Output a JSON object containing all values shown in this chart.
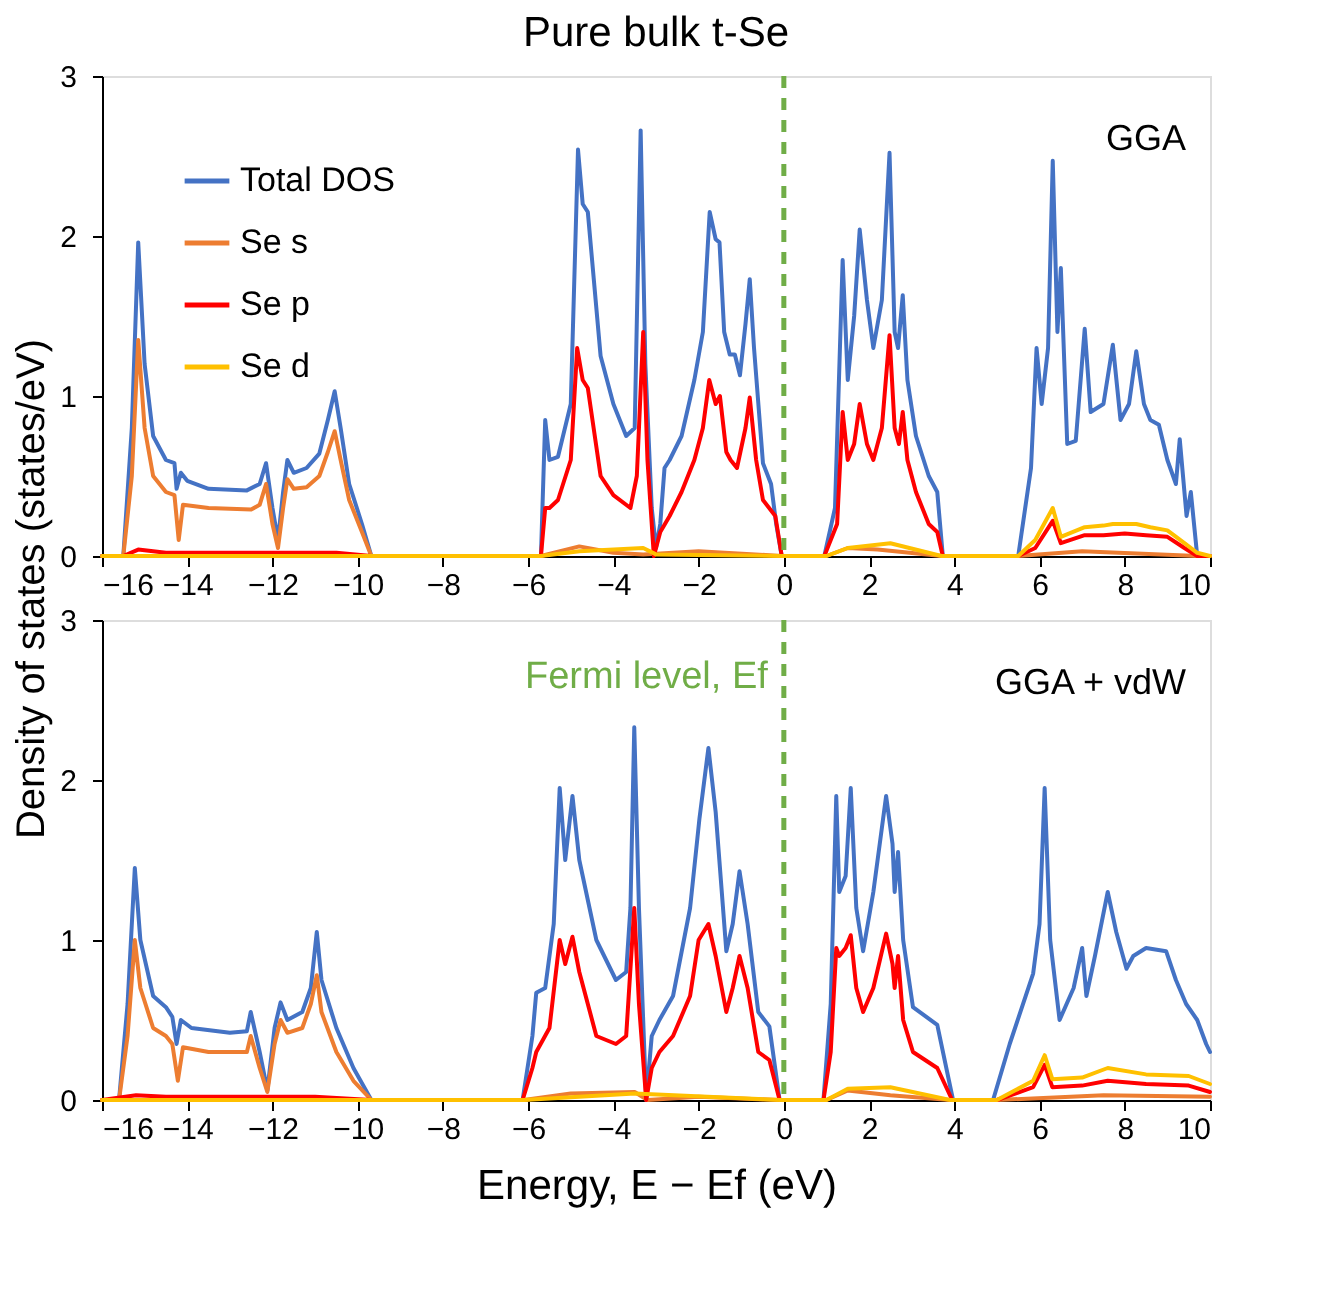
{
  "chart_data": [
    {
      "type": "line",
      "title": "Pure bulk t-Se",
      "ylabel": "Density of states (states/eV)",
      "xlim": [
        -16,
        10
      ],
      "ylim": [
        0,
        3
      ],
      "xticks": [
        -16,
        -14,
        -12,
        -10,
        -8,
        -6,
        -4,
        -2,
        0,
        2,
        4,
        6,
        8,
        10
      ],
      "yticks": [
        0,
        1,
        2,
        3
      ],
      "grid": false,
      "legend": "top left",
      "annotations": [
        "GGA"
      ],
      "ref_lines": [
        {
          "axis": "x",
          "value": 0,
          "color": "#70ad47",
          "line_style": "dashed"
        }
      ],
      "series": [
        {
          "name": "Total DOS",
          "color": "#4472c4",
          "x": [
            -16,
            -15.5,
            -15.3,
            -15.15,
            -15.0,
            -14.8,
            -14.5,
            -14.3,
            -14.25,
            -14.15,
            -14.0,
            -13.5,
            -12.6,
            -12.3,
            -12.15,
            -12.0,
            -11.87,
            -11.75,
            -11.65,
            -11.5,
            -11.2,
            -10.9,
            -10.7,
            -10.54,
            -10.4,
            -10.2,
            -9.9,
            -9.68,
            -5.7,
            -5.6,
            -5.5,
            -5.3,
            -5.0,
            -4.83,
            -4.72,
            -4.6,
            -4.3,
            -4.0,
            -3.7,
            -3.5,
            -3.36,
            -3.25,
            -3.1,
            -3.0,
            -2.9,
            -2.8,
            -2.68,
            -2.4,
            -2.1,
            -1.9,
            -1.74,
            -1.6,
            -1.51,
            -1.4,
            -1.27,
            -1.15,
            -1.03,
            -0.9,
            -0.8,
            -0.7,
            -0.49,
            -0.3,
            -0.18,
            -0.05,
            0.95,
            1.2,
            1.38,
            1.5,
            1.65,
            1.78,
            1.95,
            2.1,
            2.3,
            2.48,
            2.6,
            2.68,
            2.79,
            2.9,
            3.1,
            3.4,
            3.6,
            3.73,
            5.5,
            5.8,
            5.93,
            6.05,
            6.2,
            6.31,
            6.42,
            6.5,
            6.65,
            6.85,
            7.06,
            7.2,
            7.5,
            7.72,
            7.9,
            8.1,
            8.27,
            8.45,
            8.6,
            8.8,
            9.0,
            9.2,
            9.29,
            9.45,
            9.55,
            9.7,
            10
          ],
          "values": [
            0,
            0,
            0.8,
            1.96,
            1.2,
            0.75,
            0.6,
            0.58,
            0.42,
            0.52,
            0.47,
            0.42,
            0.41,
            0.45,
            0.58,
            0.3,
            0.1,
            0.4,
            0.6,
            0.52,
            0.55,
            0.64,
            0.85,
            1.03,
            0.8,
            0.45,
            0.2,
            0,
            0,
            0.85,
            0.6,
            0.62,
            0.95,
            2.54,
            2.2,
            2.15,
            1.25,
            0.95,
            0.75,
            0.8,
            2.66,
            1.2,
            0.3,
            0.05,
            0.2,
            0.55,
            0.6,
            0.75,
            1.1,
            1.4,
            2.15,
            1.98,
            1.96,
            1.4,
            1.26,
            1.26,
            1.13,
            1.45,
            1.73,
            1.3,
            0.58,
            0.45,
            0.2,
            0,
            0,
            0.3,
            1.85,
            1.1,
            1.5,
            2.04,
            1.6,
            1.3,
            1.6,
            2.52,
            1.4,
            1.3,
            1.63,
            1.1,
            0.75,
            0.5,
            0.4,
            0,
            0,
            0.55,
            1.3,
            0.95,
            1.3,
            2.47,
            1.4,
            1.8,
            0.7,
            0.72,
            1.42,
            0.9,
            0.95,
            1.32,
            0.85,
            0.95,
            1.28,
            0.95,
            0.85,
            0.82,
            0.6,
            0.45,
            0.73,
            0.25,
            0.4,
            0,
            0
          ]
        },
        {
          "name": "Se s",
          "color": "#ed7d31",
          "x": [
            -16,
            -15.5,
            -15.3,
            -15.15,
            -15.0,
            -14.8,
            -14.5,
            -14.3,
            -14.2,
            -14.1,
            -13.5,
            -12.5,
            -12.3,
            -12.15,
            -12.0,
            -11.87,
            -11.75,
            -11.65,
            -11.5,
            -11.2,
            -10.9,
            -10.7,
            -10.54,
            -10.4,
            -10.2,
            -9.9,
            -9.68,
            -5.7,
            -4.8,
            -4.0,
            -3.3,
            -2.0,
            -0.05,
            1.0,
            1.5,
            2.2,
            3.7,
            5.5,
            7,
            9.7,
            10
          ],
          "values": [
            0,
            0,
            0.5,
            1.35,
            0.8,
            0.5,
            0.4,
            0.38,
            0.1,
            0.32,
            0.3,
            0.29,
            0.32,
            0.45,
            0.2,
            0.05,
            0.3,
            0.48,
            0.42,
            0.43,
            0.5,
            0.65,
            0.78,
            0.6,
            0.35,
            0.15,
            0,
            0,
            0.06,
            0.02,
            0.01,
            0.03,
            0,
            0,
            0.05,
            0.04,
            0,
            0,
            0.03,
            0,
            0
          ]
        },
        {
          "name": "Se p",
          "color": "#ff0000",
          "x": [
            -16,
            -15.5,
            -15.15,
            -14.5,
            -10.5,
            -9.68,
            -5.7,
            -5.6,
            -5.5,
            -5.3,
            -5.0,
            -4.85,
            -4.72,
            -4.6,
            -4.3,
            -4.0,
            -3.6,
            -3.45,
            -3.3,
            -3.2,
            -3.05,
            -2.9,
            -2.68,
            -2.4,
            -2.1,
            -1.9,
            -1.75,
            -1.6,
            -1.5,
            -1.35,
            -1.25,
            -1.1,
            -0.9,
            -0.8,
            -0.65,
            -0.49,
            -0.2,
            -0.05,
            0.95,
            1.25,
            1.38,
            1.5,
            1.65,
            1.78,
            1.95,
            2.1,
            2.3,
            2.48,
            2.6,
            2.7,
            2.79,
            2.9,
            3.1,
            3.4,
            3.6,
            3.73,
            5.5,
            5.9,
            6.31,
            6.5,
            7.06,
            7.5,
            8.0,
            8.5,
            9.0,
            9.4,
            9.7,
            10
          ],
          "values": [
            0,
            0,
            0.04,
            0.02,
            0.02,
            0,
            0,
            0.3,
            0.3,
            0.35,
            0.6,
            1.3,
            1.1,
            1.05,
            0.5,
            0.38,
            0.3,
            0.5,
            1.4,
            0.6,
            0,
            0.15,
            0.25,
            0.4,
            0.6,
            0.8,
            1.1,
            0.95,
            1.0,
            0.65,
            0.6,
            0.55,
            0.8,
            0.99,
            0.6,
            0.35,
            0.25,
            0,
            0,
            0.2,
            0.9,
            0.6,
            0.7,
            0.95,
            0.7,
            0.6,
            0.8,
            1.38,
            0.8,
            0.7,
            0.9,
            0.6,
            0.4,
            0.2,
            0.15,
            0,
            0,
            0.05,
            0.22,
            0.08,
            0.13,
            0.13,
            0.14,
            0.13,
            0.12,
            0.05,
            0,
            0
          ]
        },
        {
          "name": "Se d",
          "color": "#ffc000",
          "x": [
            -16,
            -5.7,
            -4.8,
            -3.3,
            -3.0,
            -0.05,
            1.0,
            1.5,
            2.5,
            3.7,
            5.5,
            5.9,
            6.31,
            6.5,
            7.06,
            7.5,
            7.72,
            8.27,
            8.6,
            9.0,
            9.4,
            9.7,
            10
          ],
          "values": [
            0,
            0,
            0.03,
            0.05,
            0.01,
            0,
            0,
            0.05,
            0.08,
            0,
            0,
            0.1,
            0.3,
            0.12,
            0.18,
            0.19,
            0.2,
            0.2,
            0.18,
            0.16,
            0.08,
            0.02,
            0
          ]
        }
      ]
    },
    {
      "type": "line",
      "xlabel": "Energy, E − Ef (eV)",
      "xlim": [
        -16,
        10
      ],
      "ylim": [
        0,
        3
      ],
      "xticks": [
        -16,
        -14,
        -12,
        -10,
        -8,
        -6,
        -4,
        -2,
        0,
        2,
        4,
        6,
        8,
        10
      ],
      "yticks": [
        0,
        1,
        2,
        3
      ],
      "grid": false,
      "annotations": [
        "GGA + vdW"
      ],
      "ref_lines": [
        {
          "axis": "x",
          "value": 0,
          "label": "Fermi level, Ef",
          "color": "#70ad47",
          "line_style": "dashed"
        }
      ],
      "series": [
        {
          "color": "#4472c4",
          "x": [
            -16,
            -15.6,
            -15.4,
            -15.23,
            -15.1,
            -14.8,
            -14.5,
            -14.35,
            -14.25,
            -14.15,
            -13.9,
            -13,
            -12.6,
            -12.51,
            -12.3,
            -12.12,
            -11.95,
            -11.81,
            -11.65,
            -11.3,
            -11.1,
            -10.96,
            -10.85,
            -10.5,
            -10.1,
            -9.68,
            -6.13,
            -5.9,
            -5.81,
            -5.6,
            -5.4,
            -5.26,
            -5.13,
            -4.96,
            -4.8,
            -4.4,
            -3.94,
            -3.7,
            -3.6,
            -3.51,
            -3.4,
            -3.23,
            -3.1,
            -2.92,
            -2.6,
            -2.2,
            -1.98,
            -1.77,
            -1.6,
            -1.35,
            -1.2,
            -1.04,
            -0.85,
            -0.6,
            -0.34,
            -0.1,
            0.93,
            1.1,
            1.23,
            1.3,
            1.45,
            1.57,
            1.7,
            1.86,
            2.1,
            2.4,
            2.55,
            2.6,
            2.68,
            2.8,
            3.03,
            3.6,
            3.97,
            4.91,
            5.3,
            5.85,
            6.0,
            6.12,
            6.25,
            6.47,
            6.8,
            7.0,
            7.1,
            7.3,
            7.6,
            7.8,
            8.04,
            8.2,
            8.5,
            8.97,
            9.2,
            9.44,
            9.7,
            9.91,
            10
          ],
          "values": [
            0,
            0,
            0.6,
            1.45,
            1.0,
            0.65,
            0.58,
            0.52,
            0.35,
            0.5,
            0.45,
            0.42,
            0.43,
            0.55,
            0.3,
            0.06,
            0.45,
            0.61,
            0.5,
            0.55,
            0.7,
            1.05,
            0.75,
            0.45,
            0.2,
            0,
            0,
            0.4,
            0.67,
            0.7,
            1.1,
            1.95,
            1.5,
            1.9,
            1.5,
            1.0,
            0.75,
            0.8,
            1.2,
            2.33,
            1.2,
            0,
            0.4,
            0.5,
            0.65,
            1.2,
            1.76,
            2.2,
            1.8,
            0.93,
            1.1,
            1.43,
            1.1,
            0.55,
            0.46,
            0,
            0,
            0.6,
            1.9,
            1.3,
            1.4,
            1.95,
            1.2,
            0.93,
            1.3,
            1.9,
            1.6,
            1.3,
            1.55,
            1.0,
            0.58,
            0.47,
            0,
            0,
            0.35,
            0.79,
            1.1,
            1.95,
            1.0,
            0.5,
            0.7,
            0.95,
            0.65,
            0.9,
            1.3,
            1.05,
            0.82,
            0.9,
            0.95,
            0.93,
            0.75,
            0.6,
            0.5,
            0.35,
            0.3
          ]
        },
        {
          "color": "#ed7d31",
          "x": [
            -16,
            -15.6,
            -15.4,
            -15.23,
            -15.1,
            -14.8,
            -14.5,
            -14.35,
            -14.22,
            -14.1,
            -13.5,
            -12.6,
            -12.51,
            -12.3,
            -12.12,
            -11.95,
            -11.81,
            -11.65,
            -11.3,
            -11.1,
            -10.96,
            -10.85,
            -10.5,
            -10.1,
            -9.68,
            -6.1,
            -5.0,
            -3.5,
            -3.2,
            -2.0,
            -0.1,
            1.0,
            1.5,
            2.5,
            3.9,
            5.0,
            7.5,
            10
          ],
          "values": [
            0,
            0,
            0.4,
            1.0,
            0.7,
            0.45,
            0.4,
            0.35,
            0.12,
            0.33,
            0.3,
            0.3,
            0.4,
            0.2,
            0.05,
            0.35,
            0.5,
            0.42,
            0.45,
            0.6,
            0.78,
            0.55,
            0.3,
            0.12,
            0,
            0,
            0.04,
            0.05,
            0,
            0.02,
            0,
            0,
            0.06,
            0.03,
            0,
            0,
            0.03,
            0.02
          ]
        },
        {
          "color": "#ff0000",
          "x": [
            -16,
            -15.2,
            -14.5,
            -11,
            -9.68,
            -6.13,
            -5.9,
            -5.81,
            -5.5,
            -5.26,
            -5.13,
            -4.96,
            -4.8,
            -4.4,
            -3.94,
            -3.7,
            -3.51,
            -3.4,
            -3.23,
            -3.1,
            -2.92,
            -2.6,
            -2.2,
            -2.0,
            -1.77,
            -1.6,
            -1.35,
            -1.2,
            -1.04,
            -0.85,
            -0.6,
            -0.34,
            -0.1,
            0.93,
            1.1,
            1.23,
            1.3,
            1.45,
            1.57,
            1.7,
            1.86,
            2.1,
            2.4,
            2.55,
            2.6,
            2.68,
            2.8,
            3.03,
            3.6,
            3.95,
            5.0,
            5.85,
            6.12,
            6.3,
            7.0,
            7.6,
            8.5,
            9.5,
            10
          ],
          "values": [
            0,
            0.03,
            0.02,
            0.02,
            0,
            0,
            0.2,
            0.3,
            0.45,
            1.0,
            0.85,
            1.02,
            0.8,
            0.4,
            0.35,
            0.4,
            1.2,
            0.6,
            0,
            0.2,
            0.3,
            0.4,
            0.65,
            1.0,
            1.1,
            0.9,
            0.55,
            0.7,
            0.9,
            0.7,
            0.3,
            0.25,
            0,
            0,
            0.3,
            0.95,
            0.9,
            0.95,
            1.03,
            0.7,
            0.55,
            0.7,
            1.04,
            0.85,
            0.7,
            0.9,
            0.5,
            0.3,
            0.2,
            0,
            0,
            0.08,
            0.22,
            0.08,
            0.09,
            0.12,
            0.1,
            0.09,
            0.05
          ]
        },
        {
          "color": "#ffc000",
          "x": [
            -16,
            -6.1,
            -3.5,
            -0.1,
            1.0,
            1.5,
            2.5,
            3.9,
            5.0,
            5.85,
            6.12,
            6.3,
            7.0,
            7.6,
            8.5,
            9.5,
            10
          ],
          "values": [
            0,
            0,
            0.04,
            0,
            0,
            0.07,
            0.08,
            0,
            0,
            0.12,
            0.28,
            0.13,
            0.14,
            0.2,
            0.16,
            0.15,
            0.1
          ]
        }
      ]
    }
  ]
}
